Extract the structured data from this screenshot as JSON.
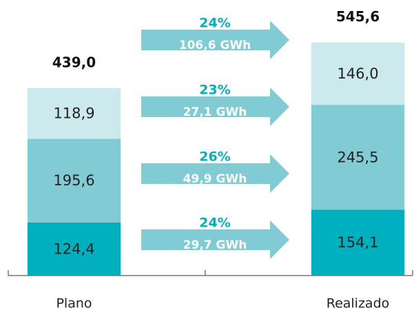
{
  "chart_data": {
    "type": "stacked-bar",
    "categories": [
      "Plano",
      "Realizado"
    ],
    "series": [
      {
        "color": "#00b0bf",
        "values": [
          124.4,
          154.1
        ],
        "value_labels": [
          "124,4",
          "154,1"
        ]
      },
      {
        "color": "#80cbd4",
        "values": [
          195.6,
          245.5
        ],
        "value_labels": [
          "195,6",
          "245,5"
        ]
      },
      {
        "color": "#cce9ed",
        "values": [
          118.9,
          146.0
        ],
        "value_labels": [
          "118,9",
          "146,0"
        ]
      }
    ],
    "totals": [
      439.0,
      545.6
    ],
    "total_labels": [
      "439,0",
      "545,6"
    ],
    "ylim": [
      0,
      645
    ],
    "arrow_color": "#80cbd4",
    "annotations": [
      {
        "percent": "24%",
        "energy": "106,6 GWh"
      },
      {
        "percent": "23%",
        "energy": "27,1 GWh"
      },
      {
        "percent": "26%",
        "energy": "49,9 GWh"
      },
      {
        "percent": "24%",
        "energy": "29,7 GWh"
      }
    ]
  }
}
